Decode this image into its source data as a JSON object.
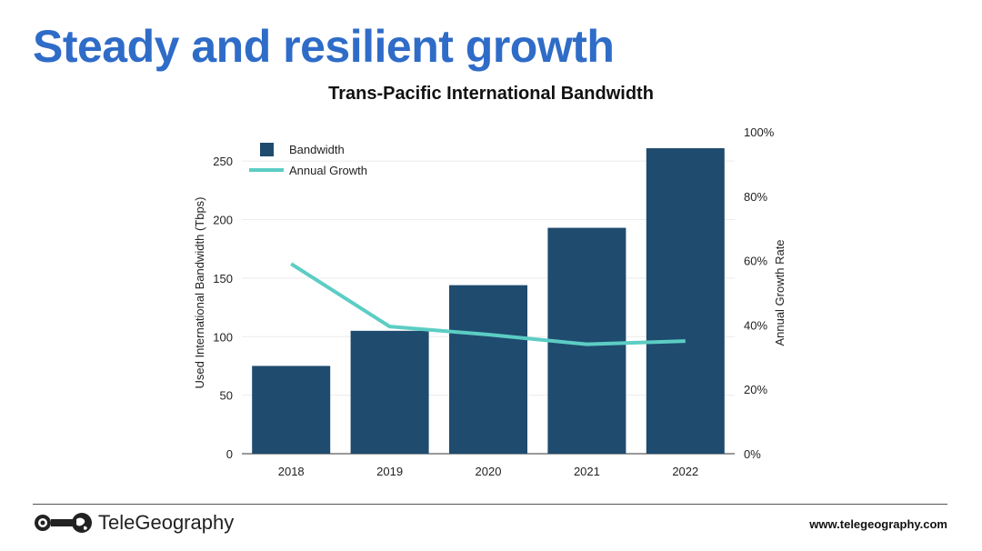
{
  "slide": {
    "title": "Steady and resilient growth"
  },
  "footer": {
    "brand": "TeleGeography",
    "url": "www.telegeography.com"
  },
  "colors": {
    "title": "#2f6cc8",
    "bar": "#1f4b6e",
    "line": "#5ccdc4"
  },
  "chart_data": {
    "type": "bar",
    "title": "Trans-Pacific International Bandwidth",
    "categories": [
      "2018",
      "2019",
      "2020",
      "2021",
      "2022"
    ],
    "series": [
      {
        "name": "Bandwidth",
        "type": "bar",
        "axis": "left",
        "values": [
          75,
          105,
          144,
          193,
          261
        ]
      },
      {
        "name": "Annual Growth",
        "type": "line",
        "axis": "right",
        "values": [
          0.59,
          0.395,
          0.37,
          0.34,
          0.35
        ]
      }
    ],
    "ylabel": "Used International Bandwidth (Tbps)",
    "y2label": "Annual Growth Rate",
    "ylim": [
      0,
      275
    ],
    "y2lim": [
      0,
      1
    ],
    "yticks": [
      "0",
      "50",
      "100",
      "150",
      "200",
      "250"
    ],
    "y2ticks": [
      "0%",
      "20%",
      "40%",
      "60%",
      "80%",
      "100%"
    ],
    "grid": true,
    "legend": "top-left"
  }
}
